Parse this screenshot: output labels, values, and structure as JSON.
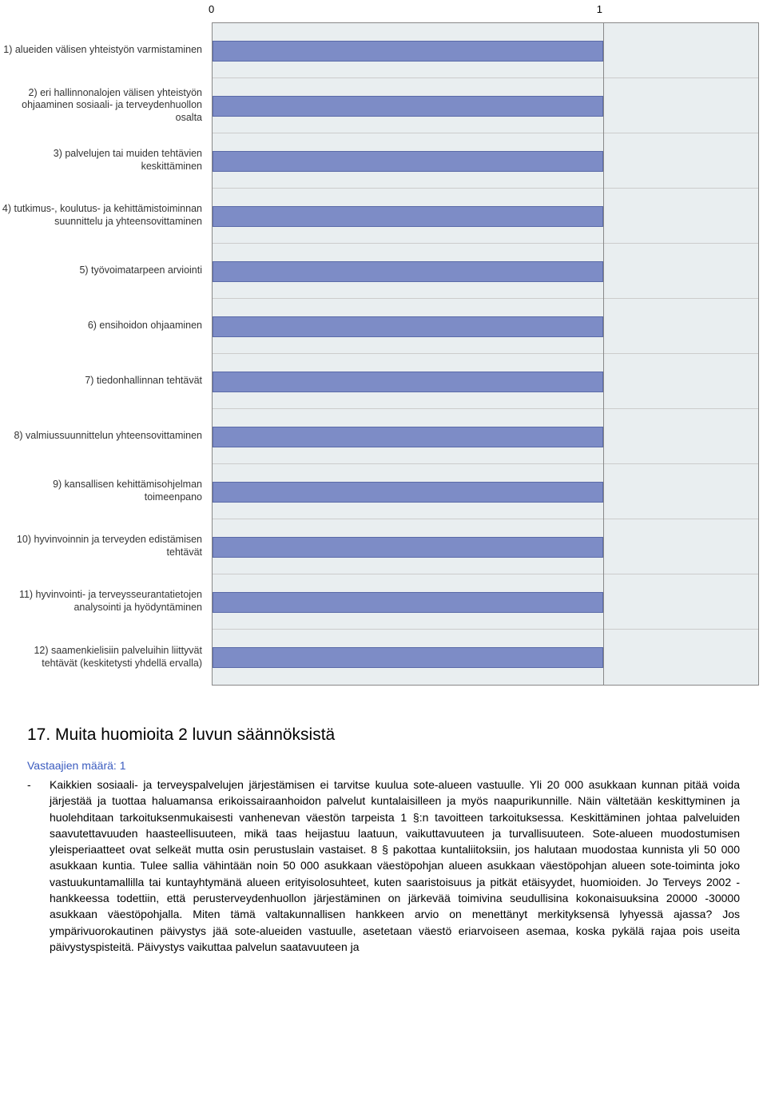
{
  "chart": {
    "type": "bar",
    "axis": {
      "min": 0,
      "max": 1,
      "tick_at_0": "0",
      "tick_at_1": "1",
      "max_extent": 1.4
    },
    "bar_color": "#7d8cc6",
    "bar_border_color": "#5a6aa8",
    "background_color": "#e9eef0",
    "grid_color": "#888888",
    "label_fontsize": 12.5,
    "label_color": "#333333",
    "rows": [
      {
        "label": "1) alueiden välisen yhteistyön varmistaminen",
        "value": 1
      },
      {
        "label": "2) eri hallinnonalojen välisen yhteistyön ohjaaminen sosiaali- ja terveydenhuollon osalta",
        "value": 1
      },
      {
        "label": "3) palvelujen tai muiden tehtävien keskittäminen",
        "value": 1
      },
      {
        "label": "4) tutkimus-, koulutus- ja kehittämistoiminnan suunnittelu ja yhteensovittaminen",
        "value": 1
      },
      {
        "label": "5) työvoimatarpeen arviointi",
        "value": 1
      },
      {
        "label": "6) ensihoidon ohjaaminen",
        "value": 1
      },
      {
        "label": "7) tiedonhallinnan tehtävät",
        "value": 1
      },
      {
        "label": "8) valmiussuunnittelun yhteensovittaminen",
        "value": 1
      },
      {
        "label": "9) kansallisen kehittämisohjelman toimeenpano",
        "value": 1
      },
      {
        "label": "10) hyvinvoinnin ja terveyden edistämisen tehtävät",
        "value": 1
      },
      {
        "label": "11) hyvinvointi- ja terveysseurantatietojen analysointi ja hyödyntäminen",
        "value": 1
      },
      {
        "label": "12) saamenkielisiin palveluihin liittyvät tehtävät (keskitetysti yhdellä ervalla)",
        "value": 1
      }
    ]
  },
  "section": {
    "heading": "17. Muita huomioita 2 luvun säännöksistä",
    "subheading": "Vastaajien määrä: 1",
    "bullet_dash": "-",
    "bullet_text": "Kaikkien sosiaali- ja terveyspalvelujen järjestämisen ei tarvitse kuulua sote-alueen vastuulle. Yli 20 000 asukkaan kunnan pitää voida järjestää ja tuottaa haluamansa erikoissairaanhoidon palvelut kuntalaisilleen ja myös naapurikunnille. Näin vältetään keskittyminen ja huolehditaan tarkoituksenmukaisesti vanhenevan väestön tarpeista 1 §:n tavoitteen tarkoituksessa. Keskittäminen johtaa palveluiden saavutettavuuden haasteellisuuteen, mikä taas heijastuu laatuun, vaikuttavuuteen ja turvallisuuteen. Sote-alueen muodostumisen yleisperiaatteet ovat selkeät mutta osin perustuslain vastaiset. 8 § pakottaa kuntaliitoksiin, jos halutaan muodostaa kunnista yli 50 000 asukkaan kuntia. Tulee sallia vähintään noin 50 000 asukkaan väestöpohjan alueen asukkaan väestöpohjan alueen sote-toiminta joko vastuukuntamallilla tai kuntayhtymänä alueen erityisolosuhteet, kuten saaristoisuus ja pitkät etäisyydet, huomioiden. Jo Terveys 2002 -hankkeessa todettiin, että perusterveydenhuollon järjestäminen on järkevää toimivina seudullisina kokonaisuuksina 20000 -30000 asukkaan väestöpohjalla. Miten tämä valtakunnallisen hankkeen arvio on menettänyt merkityksensä lyhyessä ajassa? Jos ympärivuorokautinen päivystys jää sote-alueiden vastuulle, asetetaan väestö eriarvoiseen asemaa, koska pykälä rajaa pois useita päivystyspisteitä. Päivystys vaikuttaa palvelun saatavuuteen ja"
  }
}
